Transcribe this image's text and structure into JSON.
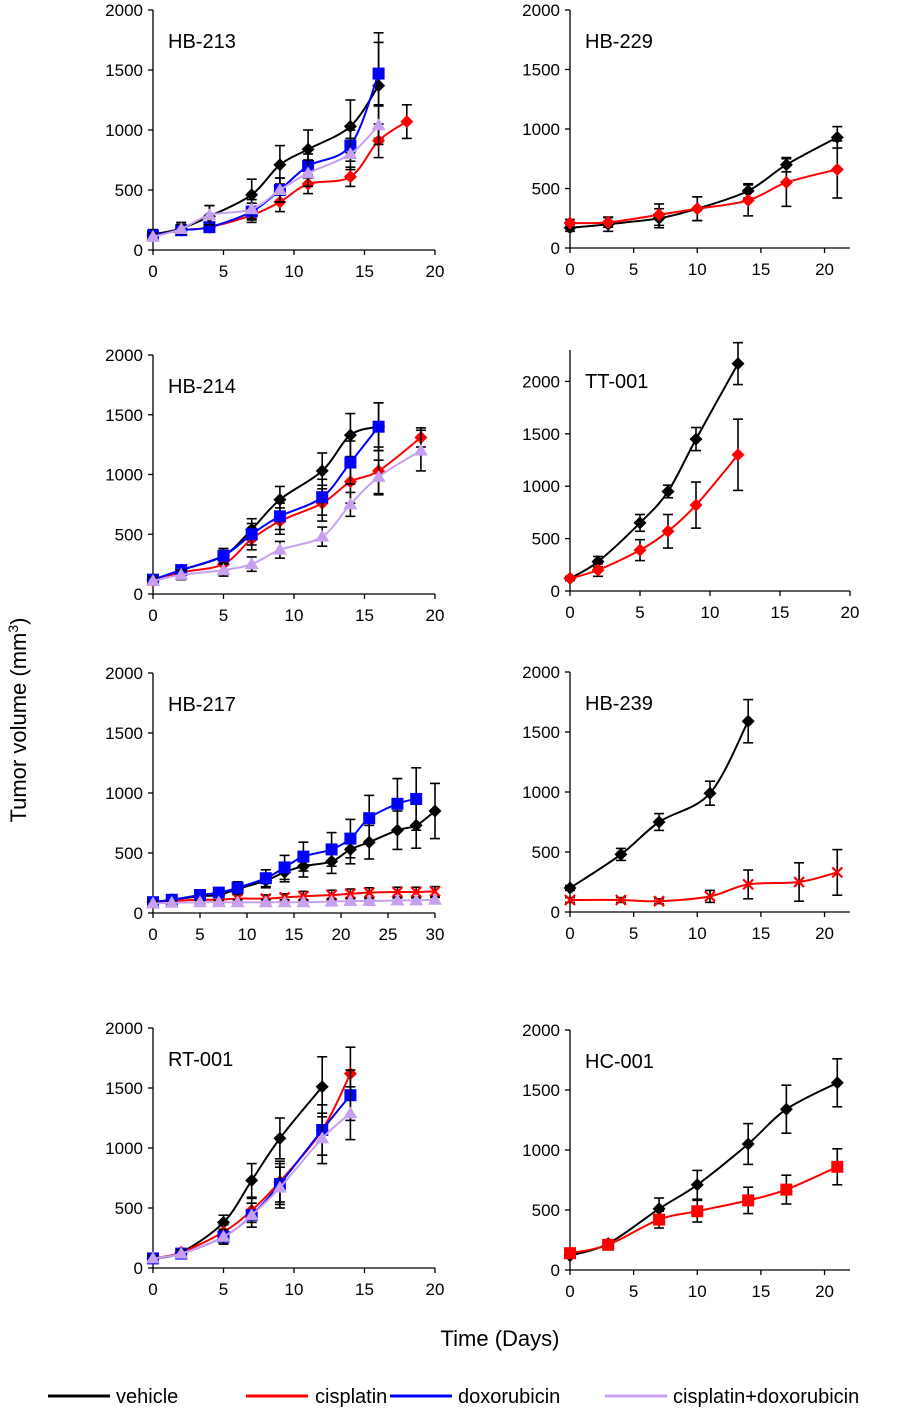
{
  "figure": {
    "ylabel_main": "Tumor volume (mm",
    "ylabel_sup": "3",
    "ylabel_close": ")",
    "xlabel": "Time (Days)"
  },
  "legend": [
    {
      "name": "vehicle",
      "color": "#000000"
    },
    {
      "name": "cisplatin",
      "color": "#ff0000"
    },
    {
      "name": "doxorubicin",
      "color": "#0000ff"
    },
    {
      "name": "cisplatin+doxorubicin",
      "color": "#c8a0f0"
    }
  ],
  "chart_data": [
    {
      "type": "line",
      "title": "HB-213",
      "xlim": [
        0,
        20
      ],
      "ylim": [
        0,
        2000
      ],
      "xticks": [
        0,
        5,
        10,
        15,
        20
      ],
      "yticks": [
        0,
        500,
        1000,
        1500,
        2000
      ],
      "series": [
        {
          "name": "vehicle",
          "marker": "diamond",
          "x": [
            0,
            2,
            4,
            7,
            9,
            11,
            14,
            16
          ],
          "y": [
            130,
            180,
            280,
            460,
            710,
            840,
            1030,
            1370
          ],
          "err": [
            40,
            50,
            90,
            130,
            160,
            160,
            220,
            440
          ]
        },
        {
          "name": "cisplatin",
          "marker": "diamond",
          "x": [
            0,
            2,
            4,
            7,
            9,
            11,
            14,
            16,
            18
          ],
          "y": [
            120,
            165,
            190,
            290,
            400,
            550,
            610,
            910,
            1070
          ],
          "err": [
            30,
            30,
            40,
            60,
            80,
            80,
            80,
            140,
            140
          ]
        },
        {
          "name": "doxorubicin",
          "marker": "square",
          "x": [
            0,
            2,
            4,
            7,
            9,
            11,
            14,
            16
          ],
          "y": [
            120,
            165,
            190,
            320,
            500,
            700,
            870,
            1470
          ],
          "err": [
            30,
            30,
            40,
            70,
            100,
            100,
            130,
            260
          ]
        },
        {
          "name": "cisplatin+doxorubicin",
          "marker": "triangle",
          "x": [
            0,
            2,
            4,
            7,
            9,
            11,
            14,
            16
          ],
          "y": [
            110,
            175,
            290,
            340,
            500,
            640,
            800,
            1040
          ],
          "err": [
            30,
            40,
            80,
            80,
            100,
            110,
            130,
            160
          ]
        }
      ]
    },
    {
      "type": "line",
      "title": "HB-229",
      "xlim": [
        0,
        22
      ],
      "ylim": [
        0,
        2000
      ],
      "xticks": [
        0,
        5,
        10,
        15,
        20
      ],
      "yticks": [
        0,
        500,
        1000,
        1500,
        2000
      ],
      "series": [
        {
          "name": "vehicle",
          "marker": "diamond",
          "x": [
            0,
            3,
            7,
            10,
            14,
            17,
            21
          ],
          "y": [
            170,
            200,
            250,
            330,
            480,
            700,
            930
          ],
          "err": [
            30,
            60,
            80,
            100,
            60,
            60,
            90
          ]
        },
        {
          "name": "cisplatin",
          "marker": "diamond",
          "x": [
            0,
            3,
            7,
            10,
            14,
            17,
            21
          ],
          "y": [
            210,
            215,
            280,
            330,
            400,
            550,
            660
          ],
          "err": [
            30,
            40,
            90,
            100,
            130,
            200,
            240
          ]
        }
      ]
    },
    {
      "type": "line",
      "title": "HB-214",
      "xlim": [
        0,
        20
      ],
      "ylim": [
        0,
        2000
      ],
      "xticks": [
        0,
        5,
        10,
        15,
        20
      ],
      "yticks": [
        0,
        500,
        1000,
        1500,
        2000
      ],
      "series": [
        {
          "name": "vehicle",
          "marker": "diamond",
          "x": [
            0,
            2,
            5,
            7,
            9,
            12,
            14,
            16
          ],
          "y": [
            120,
            200,
            320,
            540,
            790,
            1030,
            1330,
            1400
          ],
          "err": [
            30,
            40,
            60,
            90,
            110,
            150,
            180,
            200
          ]
        },
        {
          "name": "cisplatin",
          "marker": "diamond",
          "x": [
            0,
            2,
            5,
            7,
            9,
            12,
            14,
            16,
            19
          ],
          "y": [
            110,
            180,
            250,
            460,
            610,
            760,
            940,
            1030,
            1310
          ],
          "err": [
            30,
            40,
            60,
            90,
            110,
            150,
            180,
            200,
            80
          ]
        },
        {
          "name": "doxorubicin",
          "marker": "square",
          "x": [
            0,
            2,
            5,
            7,
            9,
            12,
            14,
            16
          ],
          "y": [
            120,
            200,
            320,
            500,
            650,
            810,
            1100,
            1400
          ],
          "err": [
            30,
            40,
            60,
            90,
            110,
            150,
            180,
            200
          ]
        },
        {
          "name": "cisplatin+doxorubicin",
          "marker": "triangle",
          "x": [
            0,
            2,
            5,
            7,
            9,
            12,
            14,
            16,
            19
          ],
          "y": [
            110,
            160,
            200,
            250,
            370,
            480,
            750,
            980,
            1200
          ],
          "err": [
            30,
            40,
            50,
            60,
            70,
            80,
            100,
            140,
            170
          ]
        }
      ]
    },
    {
      "type": "line",
      "title": "TT-001",
      "xlim": [
        0,
        20
      ],
      "ylim": [
        0,
        2300
      ],
      "xticks": [
        0,
        5,
        10,
        15,
        20
      ],
      "yticks": [
        0,
        500,
        1000,
        1500,
        2000
      ],
      "series": [
        {
          "name": "vehicle",
          "marker": "diamond",
          "x": [
            0,
            2,
            5,
            7,
            9,
            12
          ],
          "y": [
            120,
            280,
            650,
            950,
            1450,
            2170
          ],
          "err": [
            20,
            50,
            80,
            60,
            110,
            200
          ]
        },
        {
          "name": "cisplatin",
          "marker": "diamond",
          "x": [
            0,
            2,
            5,
            7,
            9,
            12
          ],
          "y": [
            120,
            200,
            390,
            570,
            820,
            1300
          ],
          "err": [
            20,
            60,
            100,
            160,
            220,
            340
          ]
        }
      ]
    },
    {
      "type": "line",
      "title": "HB-217",
      "xlim": [
        0,
        30
      ],
      "ylim": [
        0,
        2000
      ],
      "xticks": [
        0,
        5,
        10,
        15,
        20,
        25,
        30
      ],
      "yticks": [
        0,
        500,
        1000,
        1500,
        2000
      ],
      "series": [
        {
          "name": "vehicle",
          "marker": "diamond",
          "x": [
            0,
            2,
            5,
            7,
            9,
            12,
            14,
            16,
            19,
            21,
            23,
            26,
            28,
            30
          ],
          "y": [
            90,
            110,
            140,
            150,
            200,
            270,
            340,
            390,
            430,
            530,
            590,
            690,
            730,
            850
          ],
          "err": [
            20,
            20,
            30,
            40,
            40,
            60,
            80,
            90,
            100,
            120,
            140,
            160,
            190,
            230
          ]
        },
        {
          "name": "cisplatin",
          "marker": "cross",
          "x": [
            0,
            2,
            5,
            7,
            9,
            12,
            14,
            16,
            19,
            21,
            23,
            26,
            28,
            30
          ],
          "y": [
            90,
            100,
            110,
            110,
            120,
            120,
            130,
            140,
            150,
            160,
            170,
            175,
            175,
            180
          ],
          "err": [
            20,
            20,
            20,
            20,
            30,
            30,
            30,
            40,
            40,
            40,
            40,
            40,
            40,
            40
          ]
        },
        {
          "name": "doxorubicin",
          "marker": "square",
          "x": [
            0,
            2,
            5,
            7,
            9,
            12,
            14,
            16,
            19,
            21,
            23,
            26,
            28
          ],
          "y": [
            90,
            110,
            150,
            170,
            210,
            290,
            380,
            470,
            530,
            620,
            790,
            910,
            950
          ],
          "err": [
            20,
            20,
            30,
            40,
            50,
            70,
            100,
            120,
            140,
            160,
            190,
            210,
            260
          ]
        },
        {
          "name": "cisplatin+doxorubicin",
          "marker": "triangle",
          "x": [
            0,
            2,
            5,
            7,
            9,
            12,
            14,
            16,
            19,
            21,
            23,
            26,
            28,
            30
          ],
          "y": [
            80,
            85,
            90,
            90,
            90,
            90,
            90,
            90,
            95,
            100,
            100,
            105,
            105,
            110
          ],
          "err": [
            15,
            15,
            15,
            15,
            20,
            20,
            20,
            20,
            20,
            20,
            20,
            20,
            20,
            20
          ]
        }
      ]
    },
    {
      "type": "line",
      "title": "HB-239",
      "xlim": [
        0,
        22
      ],
      "ylim": [
        0,
        2000
      ],
      "xticks": [
        0,
        5,
        10,
        15,
        20
      ],
      "yticks": [
        0,
        500,
        1000,
        1500,
        2000
      ],
      "series": [
        {
          "name": "vehicle",
          "marker": "diamond",
          "x": [
            0,
            4,
            7,
            11,
            14
          ],
          "y": [
            200,
            480,
            750,
            990,
            1590
          ],
          "err": [
            20,
            50,
            70,
            100,
            180
          ]
        },
        {
          "name": "cisplatin",
          "marker": "cross",
          "x": [
            0,
            4,
            7,
            11,
            14,
            18,
            21
          ],
          "y": [
            100,
            100,
            90,
            130,
            230,
            250,
            330
          ],
          "err": [
            20,
            20,
            20,
            50,
            120,
            160,
            190
          ]
        }
      ]
    },
    {
      "type": "line",
      "title": "RT-001",
      "xlim": [
        0,
        20
      ],
      "ylim": [
        0,
        2000
      ],
      "xticks": [
        0,
        5,
        10,
        15,
        20
      ],
      "yticks": [
        0,
        500,
        1000,
        1500,
        2000
      ],
      "series": [
        {
          "name": "vehicle",
          "marker": "diamond",
          "x": [
            0,
            2,
            5,
            7,
            9,
            12
          ],
          "y": [
            80,
            130,
            380,
            730,
            1080,
            1510
          ],
          "err": [
            20,
            30,
            60,
            140,
            170,
            250
          ]
        },
        {
          "name": "cisplatin",
          "marker": "diamond",
          "x": [
            0,
            2,
            5,
            7,
            9,
            12,
            14
          ],
          "y": [
            80,
            130,
            300,
            480,
            720,
            1150,
            1620
          ],
          "err": [
            20,
            30,
            60,
            100,
            170,
            210,
            220
          ]
        },
        {
          "name": "doxorubicin",
          "marker": "square",
          "x": [
            0,
            2,
            5,
            7,
            9,
            12,
            14
          ],
          "y": [
            80,
            120,
            260,
            440,
            700,
            1150,
            1440
          ],
          "err": [
            20,
            30,
            60,
            100,
            170,
            210,
            210
          ]
        },
        {
          "name": "cisplatin+doxorubicin",
          "marker": "triangle",
          "x": [
            0,
            2,
            5,
            7,
            9,
            12,
            14
          ],
          "y": [
            80,
            120,
            260,
            440,
            670,
            1080,
            1290
          ],
          "err": [
            20,
            30,
            60,
            100,
            170,
            210,
            220
          ]
        }
      ]
    },
    {
      "type": "line",
      "title": "HC-001",
      "xlim": [
        0,
        22
      ],
      "ylim": [
        0,
        2000
      ],
      "xticks": [
        0,
        5,
        10,
        15,
        20
      ],
      "yticks": [
        0,
        500,
        1000,
        1500,
        2000
      ],
      "series": [
        {
          "name": "vehicle",
          "marker": "diamond",
          "x": [
            0,
            3,
            7,
            10,
            14,
            17,
            21
          ],
          "y": [
            120,
            220,
            510,
            710,
            1050,
            1340,
            1560
          ],
          "err": [
            20,
            30,
            90,
            120,
            170,
            200,
            200
          ]
        },
        {
          "name": "cisplatin",
          "marker": "square",
          "x": [
            0,
            3,
            7,
            10,
            14,
            17,
            21
          ],
          "y": [
            140,
            210,
            420,
            490,
            580,
            670,
            860
          ],
          "err": [
            20,
            30,
            70,
            90,
            110,
            120,
            150
          ]
        }
      ]
    }
  ]
}
